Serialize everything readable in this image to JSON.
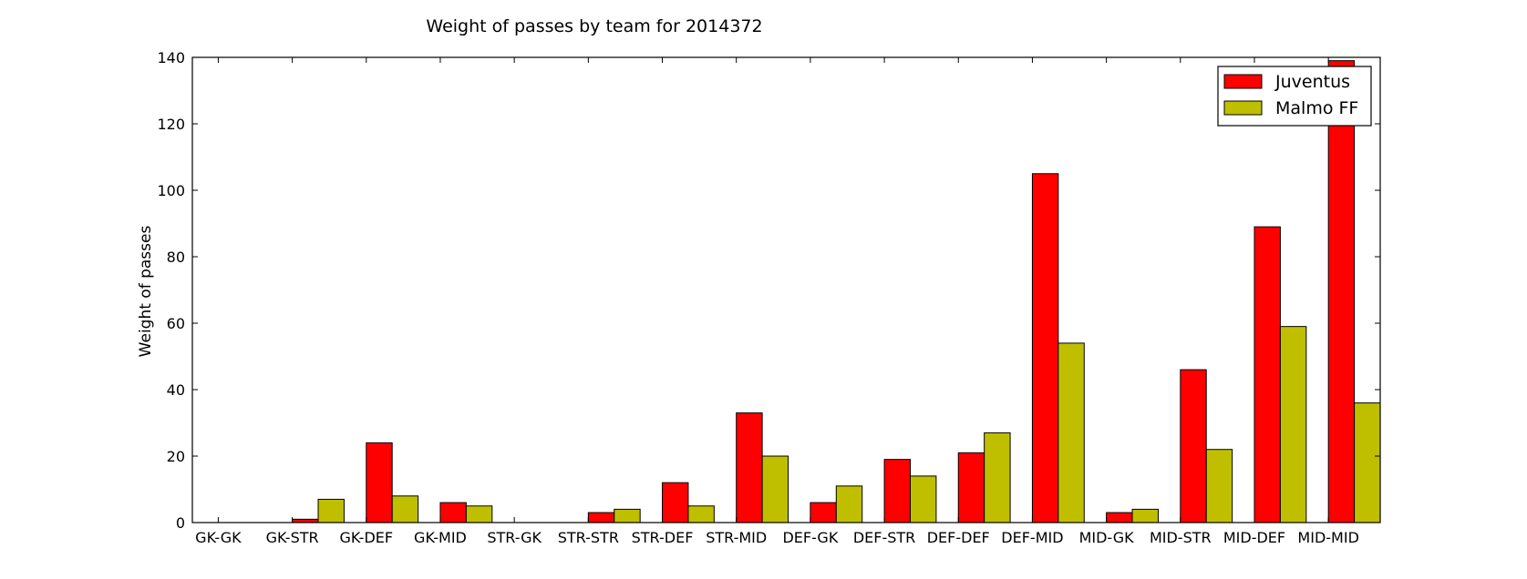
{
  "chart_data": {
    "type": "bar",
    "title": "Weight of passes by team for 2014372",
    "xlabel": "",
    "ylabel": "Weight of passes",
    "ylim": [
      0,
      140
    ],
    "yticks": [
      0,
      20,
      40,
      60,
      80,
      100,
      120,
      140
    ],
    "categories": [
      "GK-GK",
      "GK-STR",
      "GK-DEF",
      "GK-MID",
      "STR-GK",
      "STR-STR",
      "STR-DEF",
      "STR-MID",
      "DEF-GK",
      "DEF-STR",
      "DEF-DEF",
      "DEF-MID",
      "MID-GK",
      "MID-STR",
      "MID-DEF",
      "MID-MID"
    ],
    "series": [
      {
        "name": "Juventus",
        "color": "#ff0000",
        "values": [
          0,
          1,
          24,
          6,
          0,
          3,
          12,
          33,
          6,
          19,
          21,
          105,
          3,
          46,
          89,
          139
        ]
      },
      {
        "name": "Malmo FF",
        "color": "#bfbf00",
        "values": [
          0,
          7,
          8,
          5,
          0,
          4,
          5,
          20,
          11,
          14,
          27,
          54,
          4,
          22,
          59,
          36
        ]
      }
    ],
    "grid": false,
    "legend_position": "top-right"
  }
}
